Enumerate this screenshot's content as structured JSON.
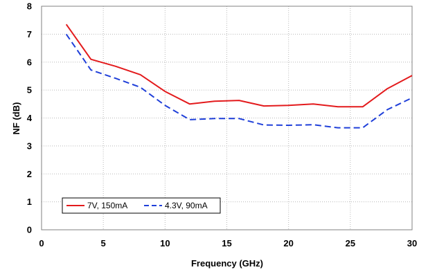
{
  "chart_data": {
    "type": "line",
    "xlabel": "Frequency (GHz)",
    "ylabel": "NF (dB)",
    "xlim": [
      0,
      30
    ],
    "ylim": [
      0,
      8
    ],
    "xticks": [
      "0",
      "5",
      "10",
      "15",
      "20",
      "25",
      "30"
    ],
    "yticks": [
      "0",
      "1",
      "2",
      "3",
      "4",
      "5",
      "6",
      "7",
      "8"
    ],
    "grid": "dotted-major",
    "legend_placement": "bottom-left",
    "series": [
      {
        "name": "7V, 150mA",
        "color": "#e31a1c",
        "style": "solid",
        "x": [
          2,
          4,
          6,
          8,
          10,
          12,
          14,
          16,
          18,
          20,
          22,
          24,
          26,
          28,
          30
        ],
        "y": [
          7.35,
          6.1,
          5.85,
          5.55,
          4.95,
          4.5,
          4.6,
          4.63,
          4.43,
          4.45,
          4.5,
          4.4,
          4.4,
          5.05,
          5.52
        ]
      },
      {
        "name": "4.3V, 90mA",
        "color": "#1f3fd9",
        "style": "dashed",
        "x": [
          2,
          4,
          6,
          8,
          10,
          12,
          14,
          16,
          18,
          20,
          22,
          24,
          26,
          28,
          30
        ],
        "y": [
          7.0,
          5.72,
          5.42,
          5.1,
          4.45,
          3.94,
          3.98,
          3.98,
          3.75,
          3.74,
          3.76,
          3.65,
          3.65,
          4.3,
          4.72
        ]
      }
    ]
  }
}
